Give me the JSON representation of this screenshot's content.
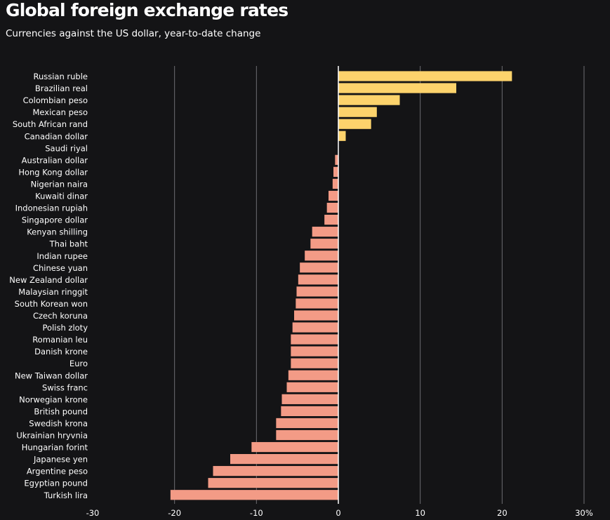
{
  "chart_data": {
    "type": "bar",
    "orientation": "horizontal",
    "title": "Global foreign exchange rates",
    "subtitle": "Currencies against the US dollar, year-to-date change",
    "categories": [
      "Russian ruble",
      "Brazilian real",
      "Colombian peso",
      "Mexican peso",
      "South African rand",
      "Canadian dollar",
      "Saudi riyal",
      "Australian dollar",
      "Hong Kong dollar",
      "Nigerian naira",
      "Kuwaiti dinar",
      "Indonesian rupiah",
      "Singapore dollar",
      "Kenyan shilling",
      "Thai baht",
      "Indian rupee",
      "Chinese yuan",
      "New Zealand dollar",
      "Malaysian ringgit",
      "South Korean won",
      "Czech koruna",
      "Polish zloty",
      "Romanian leu",
      "Danish krone",
      "Euro",
      "New Taiwan dollar",
      "Swiss franc",
      "Norwegian krone",
      "British pound",
      "Swedish krona",
      "Ukrainian hryvnia",
      "Hungarian forint",
      "Japanese yen",
      "Argentine peso",
      "Egyptian pound",
      "Turkish lira"
    ],
    "values": [
      21.2,
      14.4,
      7.5,
      4.7,
      4.0,
      0.9,
      0.0,
      -0.4,
      -0.6,
      -0.7,
      -1.2,
      -1.4,
      -1.7,
      -3.2,
      -3.4,
      -4.1,
      -4.7,
      -4.9,
      -5.1,
      -5.2,
      -5.4,
      -5.6,
      -5.8,
      -5.8,
      -5.8,
      -6.1,
      -6.3,
      -6.9,
      -7.0,
      -7.6,
      -7.6,
      -10.6,
      -13.2,
      -15.3,
      -15.9,
      -20.5
    ],
    "xlim": [
      -30,
      30
    ],
    "xticks": [
      "-30",
      "-20",
      "-10",
      "0",
      "10",
      "20",
      "30%"
    ],
    "xtick_values": [
      -30,
      -20,
      -10,
      0,
      10,
      20,
      30
    ],
    "grid": true,
    "colors": {
      "positive": "#fdd36c",
      "negative": "#f39b86",
      "gridline": "#6e6e72",
      "zero_line": "#ffffff",
      "background": "#141416",
      "text": "#ffffff"
    }
  }
}
